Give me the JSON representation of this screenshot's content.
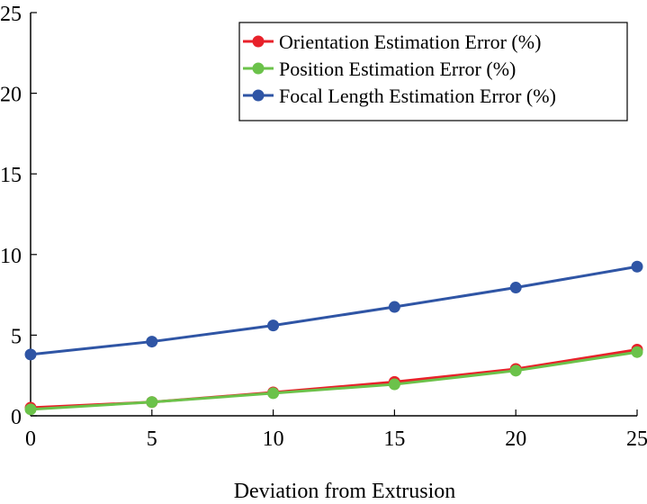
{
  "chart_data": {
    "type": "line",
    "title": "",
    "xlabel": "Deviation from Extrusion",
    "ylabel": "",
    "x": [
      0,
      5,
      10,
      15,
      20,
      25
    ],
    "xlim": [
      0,
      25
    ],
    "ylim": [
      0,
      25
    ],
    "xticks": [
      "0",
      "5",
      "10",
      "15",
      "20",
      "25"
    ],
    "yticks": [
      "0",
      "5",
      "10",
      "15",
      "20",
      "25"
    ],
    "grid": false,
    "legend_position": "top-right",
    "series": [
      {
        "name": "Orientation Estimation Error (%)",
        "color": "#e8212a",
        "values": [
          0.5,
          0.85,
          1.45,
          2.1,
          2.9,
          4.1
        ]
      },
      {
        "name": "Position Estimation Error (%)",
        "color": "#6bc24a",
        "values": [
          0.4,
          0.85,
          1.4,
          1.95,
          2.8,
          3.95
        ]
      },
      {
        "name": "Focal Length Estimation Error (%)",
        "color": "#2f55a5",
        "values": [
          3.8,
          4.6,
          5.6,
          6.75,
          7.95,
          9.25
        ]
      }
    ]
  }
}
